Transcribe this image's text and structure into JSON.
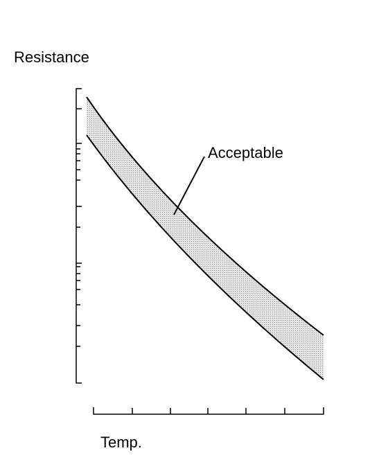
{
  "y_axis_label": "Resistance",
  "x_axis_label": "Temp.",
  "band_label": "Acceptable"
}
